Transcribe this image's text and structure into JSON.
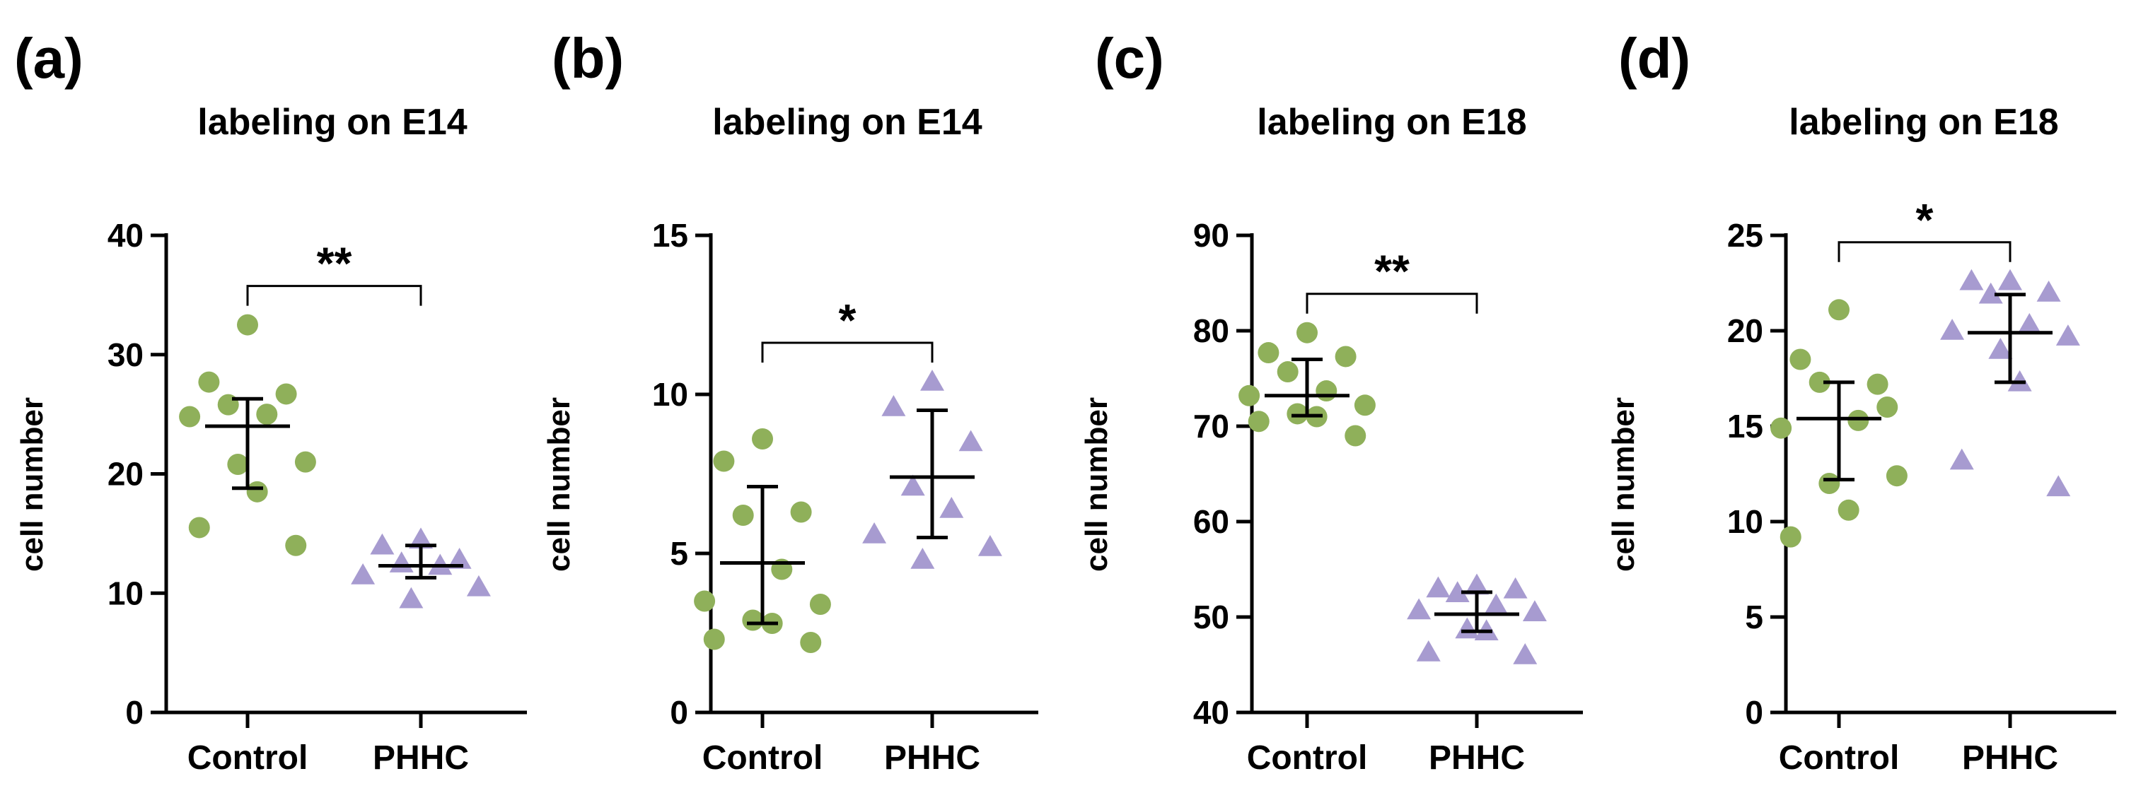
{
  "colors": {
    "control_marker": "#8FB05A",
    "phhc_marker": "#A79BD0",
    "ink": "#000000"
  },
  "chart_data": [
    {
      "panel_label": "(a)",
      "type": "scatter",
      "title": "labeling on E14",
      "ylabel": "cell number",
      "xlabel": "",
      "categories": [
        "Control",
        "PHHC"
      ],
      "ylim": [
        0,
        40
      ],
      "yticks": [
        0,
        10,
        20,
        30,
        40
      ],
      "significance": "**",
      "series": [
        {
          "name": "Control",
          "marker": "circle",
          "values": [
            32.5,
            27.7,
            26.7,
            25.8,
            25.0,
            24.8,
            21.0,
            20.8,
            18.5,
            15.5,
            14.0
          ],
          "mean": 24.0,
          "sd_low": 18.8,
          "sd_high": 26.3
        },
        {
          "name": "PHHC",
          "marker": "triangle",
          "values": [
            14.5,
            14.0,
            12.8,
            12.5,
            12.3,
            11.5,
            10.5,
            9.5
          ],
          "mean": 12.3,
          "sd_low": 11.3,
          "sd_high": 14.0
        }
      ]
    },
    {
      "panel_label": "(b)",
      "type": "scatter",
      "title": "labeling on E14",
      "ylabel": "cell number",
      "xlabel": "",
      "categories": [
        "Control",
        "PHHC"
      ],
      "ylim": [
        0,
        15
      ],
      "yticks": [
        0,
        5,
        10,
        15
      ],
      "significance": "*",
      "series": [
        {
          "name": "Control",
          "marker": "circle",
          "values": [
            8.6,
            7.9,
            6.3,
            6.2,
            4.5,
            3.5,
            3.4,
            2.9,
            2.8,
            2.3,
            2.2
          ],
          "mean": 4.7,
          "sd_low": 2.8,
          "sd_high": 7.1
        },
        {
          "name": "PHHC",
          "marker": "triangle",
          "values": [
            10.4,
            9.6,
            8.5,
            7.1,
            6.4,
            5.6,
            5.2,
            4.8
          ],
          "mean": 7.4,
          "sd_low": 5.5,
          "sd_high": 9.5
        }
      ]
    },
    {
      "panel_label": "(c)",
      "type": "scatter",
      "title": "labeling on E18",
      "ylabel": "cell number",
      "xlabel": "",
      "categories": [
        "Control",
        "PHHC"
      ],
      "ylim": [
        40,
        90
      ],
      "yticks": [
        40,
        50,
        60,
        70,
        80,
        90
      ],
      "significance": "**",
      "series": [
        {
          "name": "Control",
          "marker": "circle",
          "values": [
            79.8,
            77.7,
            77.3,
            75.7,
            73.7,
            73.2,
            72.2,
            71.3,
            71.0,
            70.5,
            69.0
          ],
          "mean": 73.2,
          "sd_low": 71.1,
          "sd_high": 77.0
        },
        {
          "name": "PHHC",
          "marker": "triangle",
          "values": [
            53.3,
            53.0,
            52.9,
            52.5,
            51.2,
            50.7,
            50.5,
            48.7,
            48.5,
            46.3,
            46.0
          ],
          "mean": 50.3,
          "sd_low": 48.5,
          "sd_high": 52.6
        }
      ]
    },
    {
      "panel_label": "(d)",
      "type": "scatter",
      "title": "labeling on E18",
      "ylabel": "cell number",
      "xlabel": "",
      "categories": [
        "Control",
        "PHHC"
      ],
      "ylim": [
        0,
        25
      ],
      "yticks": [
        0,
        5,
        10,
        15,
        20,
        25
      ],
      "significance": "*",
      "series": [
        {
          "name": "Control",
          "marker": "circle",
          "values": [
            21.1,
            18.5,
            17.2,
            17.3,
            15.3,
            14.9,
            12.4,
            12.0,
            10.6,
            9.2,
            16.0
          ],
          "mean": 15.4,
          "sd_low": 12.2,
          "sd_high": 17.3
        },
        {
          "name": "PHHC",
          "marker": "triangle",
          "values": [
            22.6,
            22.6,
            22.0,
            21.9,
            20.3,
            20.0,
            19.7,
            19.0,
            17.3,
            13.2,
            11.8
          ],
          "mean": 19.9,
          "sd_low": 17.3,
          "sd_high": 21.9
        }
      ]
    }
  ]
}
